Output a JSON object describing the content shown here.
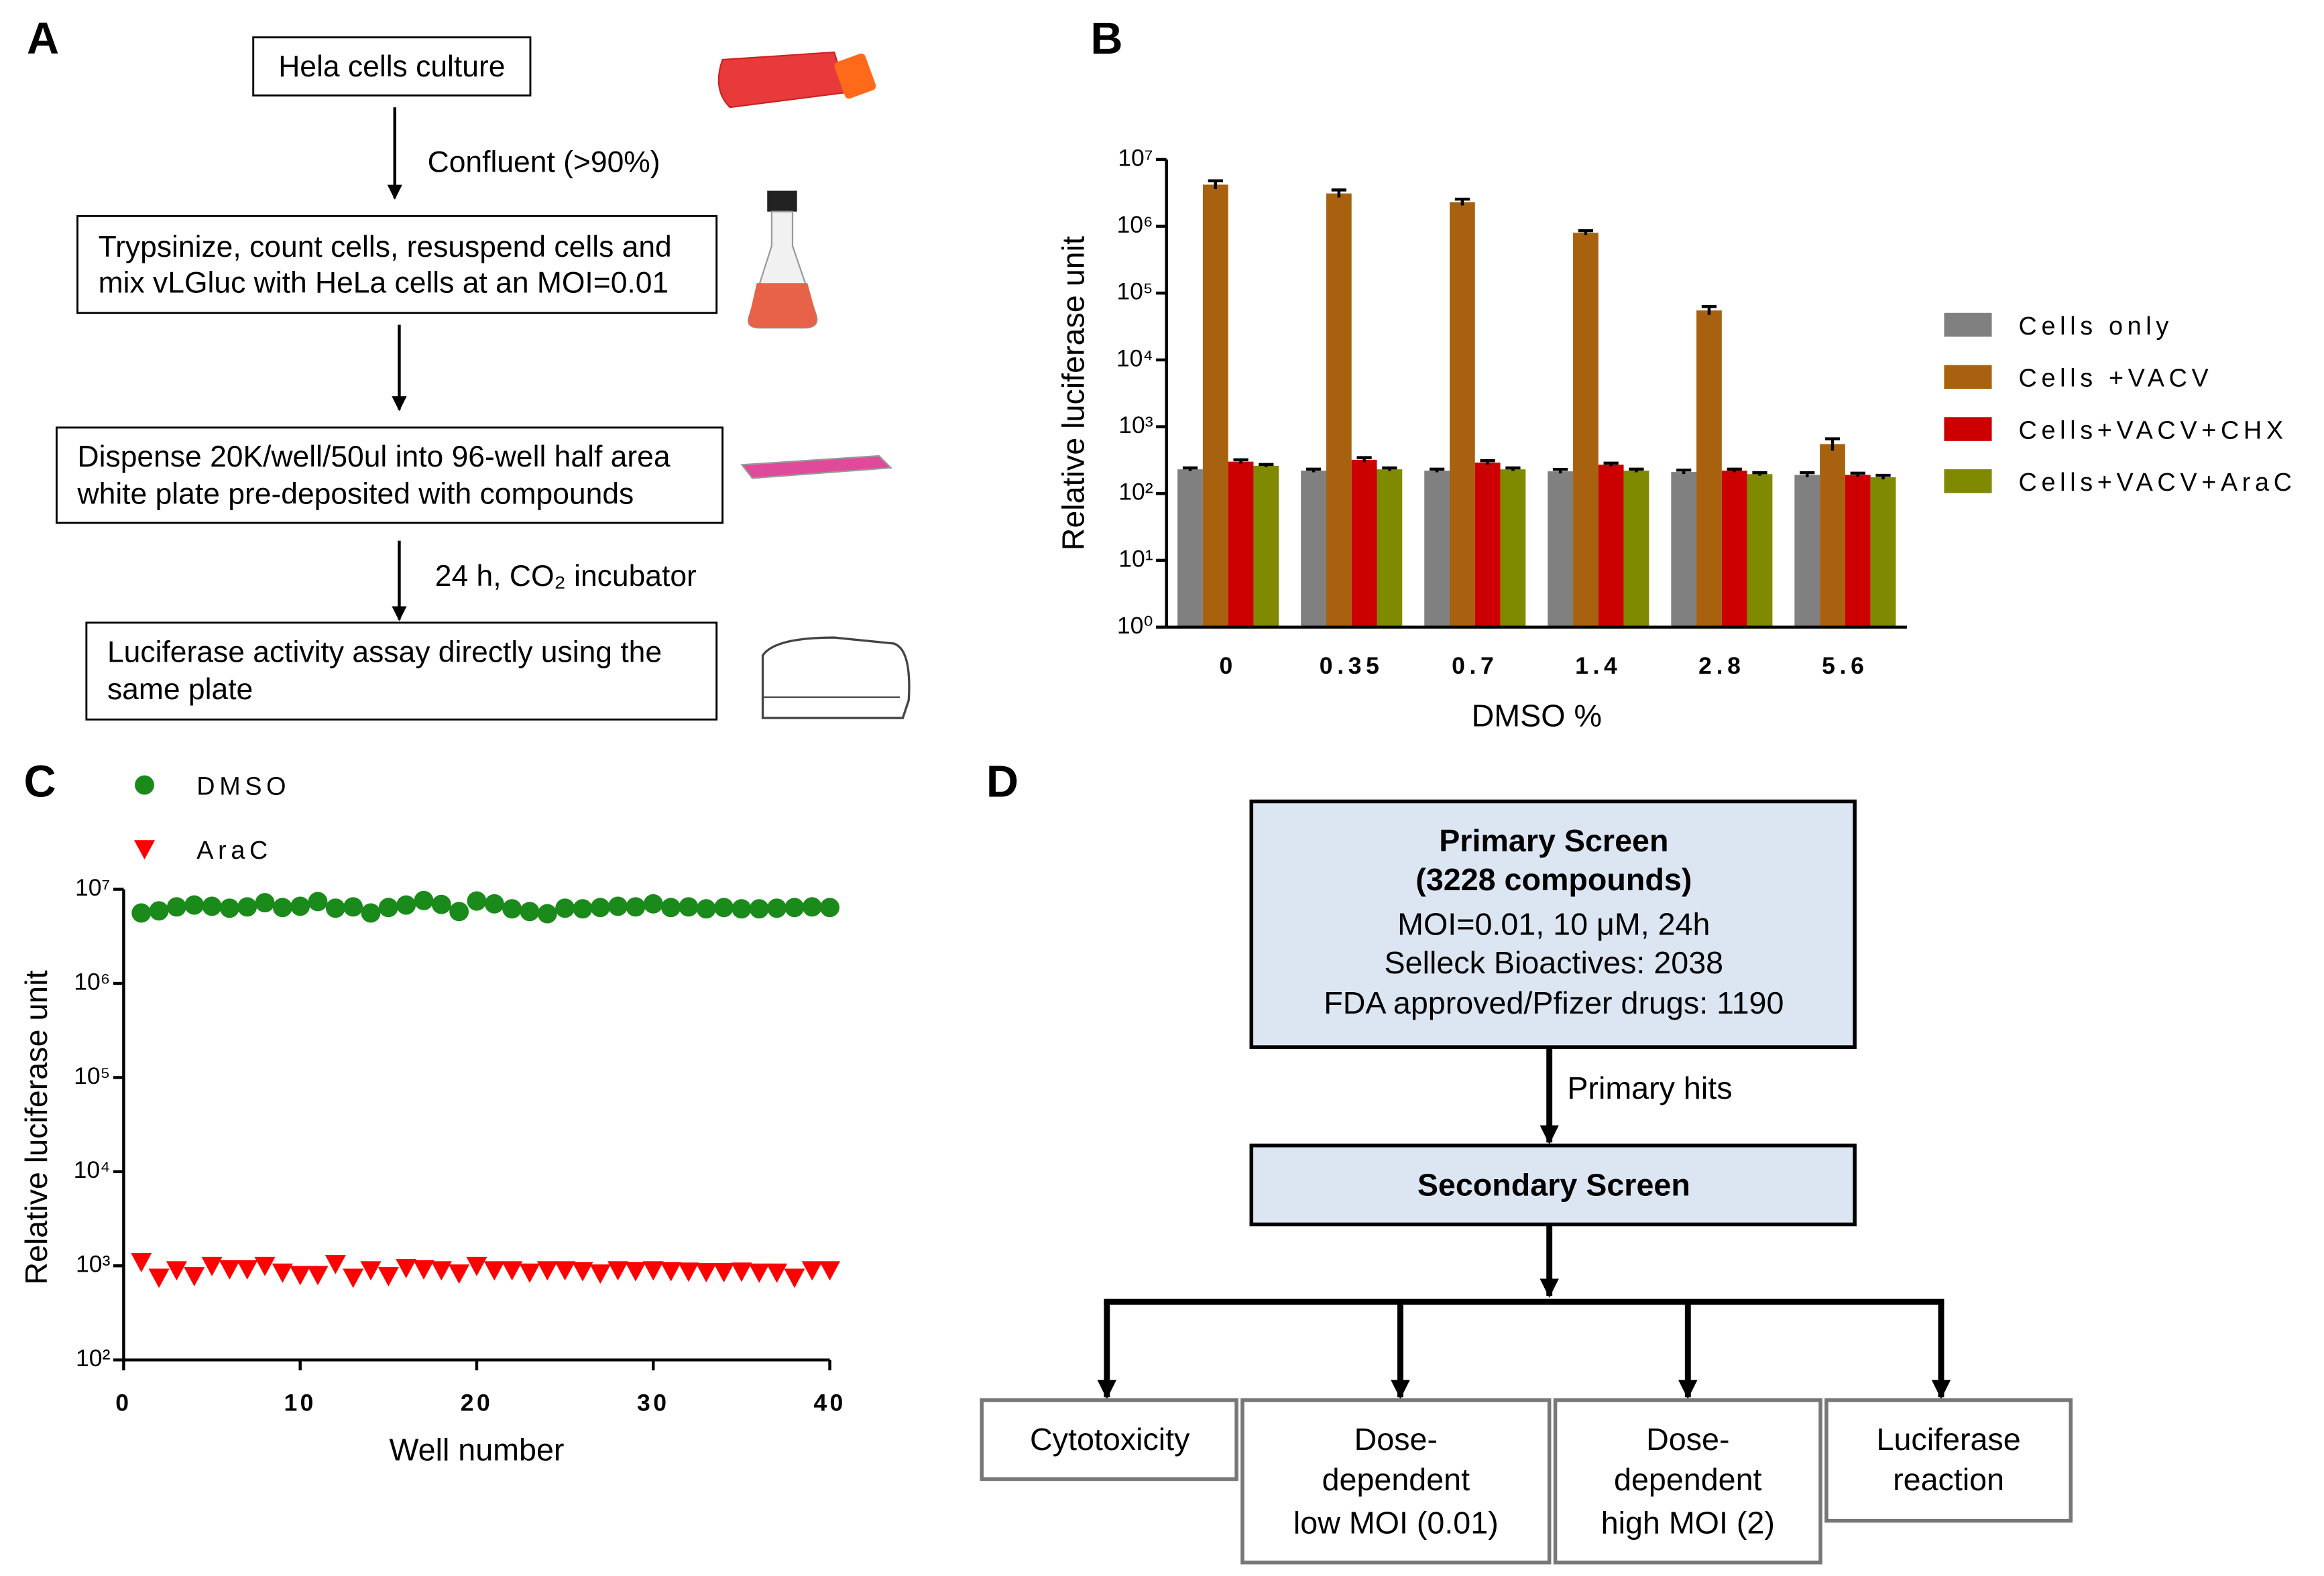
{
  "panel_labels": [
    "A",
    "B",
    "C",
    "D"
  ],
  "flow_a": {
    "steps": [
      {
        "lines": [
          "Hela cells culture"
        ]
      },
      {
        "lines": [
          "Trypsinize, count cells, resuspend cells and",
          "mix vLGluc with HeLa cells at an MOI=0.01"
        ]
      },
      {
        "lines": [
          "Dispense 20K/well/50ul into 96-well half area",
          "white plate pre-deposited with compounds"
        ]
      },
      {
        "lines": [
          "Luciferase activity assay directly using the",
          "same plate"
        ]
      }
    ],
    "arrow_labels": [
      "Confluent (>90%)",
      "24 h, CO₂ incubator"
    ]
  },
  "flow_d": {
    "primary": {
      "lines": [
        "Primary Screen",
        "(3228 compounds)",
        "MOI=0.01, 10 μM, 24h",
        "Selleck Bioactives: 2038",
        "FDA approved/Pfizer drugs: 1190"
      ]
    },
    "arrow_label": "Primary hits",
    "secondary": "Secondary Screen",
    "assays": [
      [
        "Cytotoxicity"
      ],
      [
        "Dose-",
        "dependent",
        "low MOI (0.01)"
      ],
      [
        "Dose-",
        "dependent",
        "high MOI (2)"
      ],
      [
        "Luciferase",
        "reaction"
      ]
    ]
  },
  "chart_data": [
    {
      "type": "bar",
      "log_y": true,
      "x_label": "DMSO %",
      "y_label": "Relative luciferase unit",
      "categories": [
        "0",
        "0.35",
        "0.7",
        "1.4",
        "2.8",
        "5.6"
      ],
      "series": [
        {
          "name": "Cells only",
          "color": "#808080",
          "values": [
            230,
            220,
            220,
            215,
            210,
            190
          ],
          "errors": [
            12,
            12,
            12,
            15,
            14,
            15
          ]
        },
        {
          "name": "Cells +VACV",
          "color": "#a8620f",
          "values": [
            4200000,
            3100000,
            2300000,
            800000,
            55000,
            550
          ],
          "errors": [
            600000,
            400000,
            250000,
            60000,
            8000,
            110
          ]
        },
        {
          "name": "Cells+VACV+CHX",
          "color": "#cc0000",
          "values": [
            300,
            320,
            290,
            270,
            220,
            190
          ],
          "errors": [
            20,
            25,
            20,
            15,
            12,
            12
          ]
        },
        {
          "name": "Cells+VACV+AraC",
          "color": "#7f8a00",
          "values": [
            260,
            230,
            230,
            220,
            195,
            175
          ],
          "errors": [
            12,
            12,
            12,
            12,
            10,
            12
          ]
        }
      ],
      "ylim": [
        1,
        10000000
      ],
      "yticks": [
        {
          "value": 1,
          "label": "10⁰"
        },
        {
          "value": 10,
          "label": "10¹"
        },
        {
          "value": 100,
          "label": "10²"
        },
        {
          "value": 1000,
          "label": "10³"
        },
        {
          "value": 10000,
          "label": "10⁴"
        },
        {
          "value": 100000,
          "label": "10⁵"
        },
        {
          "value": 1000000,
          "label": "10⁶"
        },
        {
          "value": 10000000,
          "label": "10⁷"
        }
      ],
      "legend": "right"
    },
    {
      "type": "scatter",
      "log_y": true,
      "x_label": "Well number",
      "y_label": "Relative luciferase unit",
      "x": [
        1,
        2,
        3,
        4,
        5,
        6,
        7,
        8,
        9,
        10,
        11,
        12,
        13,
        14,
        15,
        16,
        17,
        18,
        19,
        20,
        21,
        22,
        23,
        24,
        25,
        26,
        27,
        28,
        29,
        30,
        31,
        32,
        33,
        34,
        35,
        36,
        37,
        38,
        39,
        40
      ],
      "series": [
        {
          "name": "DMSO",
          "color": "#1a8a1a",
          "marker": "circle",
          "values": [
            5600000,
            5900000,
            6500000,
            6800000,
            6600000,
            6300000,
            6500000,
            7200000,
            6400000,
            6600000,
            7400000,
            6300000,
            6500000,
            5600000,
            6400000,
            6800000,
            7600000,
            6900000,
            5800000,
            7500000,
            7000000,
            6200000,
            5800000,
            5500000,
            6300000,
            6200000,
            6400000,
            6600000,
            6500000,
            7000000,
            6400000,
            6500000,
            6200000,
            6400000,
            6200000,
            6200000,
            6300000,
            6400000,
            6500000,
            6400000
          ]
        },
        {
          "name": "AraC",
          "color": "#ff0000",
          "marker": "triangle",
          "values": [
            1100,
            750,
            900,
            780,
            1000,
            920,
            920,
            1000,
            850,
            800,
            800,
            1050,
            750,
            900,
            780,
            950,
            920,
            900,
            830,
            1000,
            900,
            900,
            850,
            900,
            900,
            880,
            830,
            900,
            880,
            900,
            880,
            870,
            860,
            860,
            870,
            850,
            850,
            750,
            900,
            900
          ]
        }
      ],
      "xlim": [
        0,
        40
      ],
      "xticks": [
        0,
        10,
        20,
        30,
        40
      ],
      "ylim": [
        100,
        10000000
      ],
      "yticks": [
        {
          "value": 100,
          "label": "10²"
        },
        {
          "value": 1000,
          "label": "10³"
        },
        {
          "value": 10000,
          "label": "10⁴"
        },
        {
          "value": 100000,
          "label": "10⁵"
        },
        {
          "value": 1000000,
          "label": "10⁶"
        },
        {
          "value": 10000000,
          "label": "10⁷"
        }
      ],
      "legend": "top-left"
    }
  ]
}
